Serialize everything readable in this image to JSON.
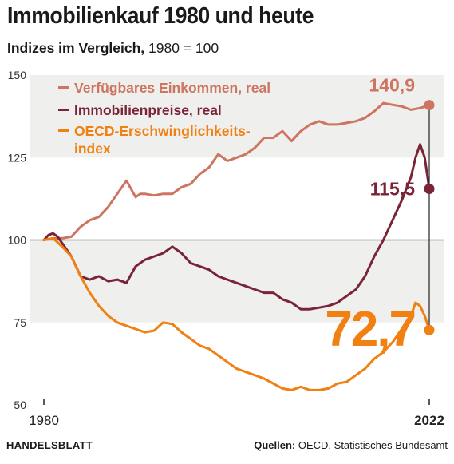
{
  "title": "Immobilienkauf 1980 und heute",
  "subtitle": {
    "bold": "Indizes im Vergleich,",
    "rest": " 1980 = 100"
  },
  "footer": {
    "brand": "HANDELSBLATT",
    "source_label": "Quellen:",
    "source_text": " OECD, Statistisches Bundesamt"
  },
  "colors": {
    "income": "#cd7560",
    "prices": "#7a2438",
    "oecd": "#f08011",
    "band": "#efefed",
    "baseline": "#1a1a1a"
  },
  "chart_data": {
    "type": "line",
    "title": "Immobilienkauf 1980 und heute",
    "subtitle": "Indizes im Vergleich, 1980 = 100",
    "xlabel": "",
    "ylabel": "",
    "xlim": [
      1980,
      2022
    ],
    "ylim": [
      50,
      150
    ],
    "yticks": [
      50,
      75,
      100,
      125,
      150
    ],
    "xtick_labels": [
      "1980",
      "2022"
    ],
    "grid": false,
    "legend": "top-left",
    "series": [
      {
        "name": "Verfügbares Einkommen, real",
        "end_label": "140,9",
        "x": [
          1980,
          1981,
          1982,
          1983,
          1984,
          1985,
          1986,
          1987,
          1988,
          1989,
          1990,
          1990.5,
          1991,
          1992,
          1993,
          1994,
          1995,
          1996,
          1997,
          1998,
          1999,
          2000,
          2001,
          2002,
          2003,
          2004,
          2005,
          2006,
          2007,
          2008,
          2009,
          2010,
          2011,
          2012,
          2013,
          2014,
          2015,
          2016,
          2017,
          2018,
          2019,
          2020,
          2021,
          2022
        ],
        "y": [
          100,
          100.5,
          100.5,
          101,
          104,
          106,
          107,
          110,
          114,
          118,
          113,
          114,
          114,
          113.5,
          114,
          114,
          116,
          117,
          120,
          122,
          126,
          124,
          125,
          126,
          128,
          131,
          131,
          133,
          130,
          133,
          135,
          136,
          135,
          135,
          135.5,
          136,
          137,
          139,
          141.5,
          141,
          140.5,
          139.5,
          140,
          140.9
        ]
      },
      {
        "name": "Immobilienpreise, real",
        "end_label": "115,5",
        "x": [
          1980,
          1980.5,
          1981,
          1981.5,
          1982,
          1983,
          1984,
          1985,
          1986,
          1987,
          1988,
          1989,
          1990,
          1991,
          1992,
          1993,
          1994,
          1995,
          1996,
          1997,
          1998,
          1999,
          2000,
          2001,
          2002,
          2003,
          2004,
          2005,
          2006,
          2007,
          2008,
          2009,
          2010,
          2011,
          2012,
          2013,
          2014,
          2015,
          2016,
          2017,
          2018,
          2019,
          2020,
          2020.5,
          2021,
          2021.5,
          2022
        ],
        "y": [
          100,
          101.5,
          102,
          101,
          99,
          95,
          89,
          88,
          89,
          87.5,
          88,
          87,
          92,
          94,
          95,
          96,
          98,
          96,
          93,
          92,
          91,
          89,
          88,
          87,
          86,
          85,
          84,
          84,
          82,
          81,
          79,
          79,
          79.5,
          80,
          81,
          83,
          85,
          89,
          95,
          100,
          106,
          112,
          119,
          125,
          129,
          125,
          115.5
        ]
      },
      {
        "name": "OECD-Erschwinglichkeits-index",
        "end_label": "72,7",
        "x": [
          1980,
          1981,
          1982,
          1983,
          1984,
          1985,
          1986,
          1987,
          1988,
          1989,
          1990,
          1991,
          1992,
          1993,
          1994,
          1995,
          1996,
          1997,
          1998,
          1999,
          2000,
          2001,
          2002,
          2003,
          2004,
          2005,
          2006,
          2007,
          2008,
          2009,
          2010,
          2011,
          2012,
          2013,
          2014,
          2015,
          2016,
          2017,
          2018,
          2019,
          2020,
          2020.5,
          2021,
          2021.5,
          2022
        ],
        "y": [
          100,
          100.5,
          98,
          95,
          89,
          84,
          80,
          77,
          75,
          74,
          73,
          72,
          72.5,
          75,
          74.5,
          72,
          70,
          68,
          67,
          65,
          63,
          61,
          60,
          59,
          58,
          56.5,
          55,
          54.5,
          55.5,
          54.5,
          54.5,
          55,
          56.5,
          57,
          59,
          61,
          64,
          66,
          69,
          73,
          77,
          81,
          80,
          77,
          72.7
        ]
      }
    ]
  }
}
